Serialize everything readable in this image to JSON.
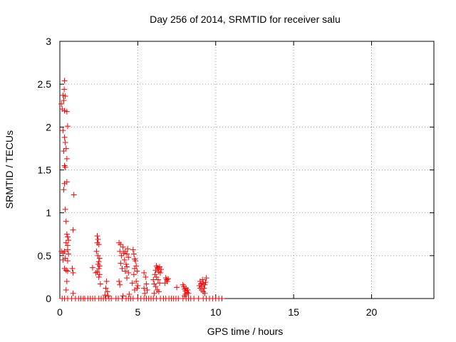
{
  "chart_data": {
    "type": "scatter",
    "title": "Day 256 of 2014, SRMTID for receiver salu",
    "xlabel": "GPS time / hours",
    "ylabel": "SRMTID / TECUs",
    "xlim": [
      0,
      24
    ],
    "ylim": [
      0,
      3
    ],
    "xticks": [
      0,
      5,
      10,
      15,
      20
    ],
    "xtick_labels": [
      "0",
      "5",
      "10",
      "15",
      "20"
    ],
    "yticks": [
      0,
      0.5,
      1,
      1.5,
      2,
      2.5,
      3
    ],
    "ytick_labels": [
      "0",
      "0.5",
      "1",
      "1.5",
      "2",
      "2.5",
      "3"
    ],
    "grid": true,
    "marker": "+",
    "series": [
      {
        "name": "SRMTID",
        "color": "#ff0000",
        "points": [
          [
            0.1,
            2.27
          ],
          [
            0.15,
            2.21
          ],
          [
            0.2,
            2.37
          ],
          [
            0.25,
            2.31
          ],
          [
            0.3,
            2.54
          ],
          [
            0.28,
            2.44
          ],
          [
            0.35,
            2.36
          ],
          [
            0.3,
            2.19
          ],
          [
            0.45,
            2.18
          ],
          [
            0.5,
            2.01
          ],
          [
            0.2,
            1.96
          ],
          [
            0.3,
            1.88
          ],
          [
            0.35,
            1.82
          ],
          [
            0.25,
            1.72
          ],
          [
            0.4,
            1.75
          ],
          [
            0.45,
            1.63
          ],
          [
            0.3,
            1.55
          ],
          [
            0.35,
            1.53
          ],
          [
            0.3,
            1.34
          ],
          [
            0.25,
            1.27
          ],
          [
            0.45,
            1.36
          ],
          [
            0.9,
            1.21
          ],
          [
            0.35,
            1.04
          ],
          [
            0.4,
            0.9
          ],
          [
            0.85,
            0.8
          ],
          [
            0.45,
            0.75
          ],
          [
            0.5,
            0.72
          ],
          [
            0.55,
            0.68
          ],
          [
            0.4,
            0.65
          ],
          [
            0.5,
            0.62
          ],
          [
            0.1,
            0.55
          ],
          [
            0.2,
            0.53
          ],
          [
            0.3,
            0.55
          ],
          [
            0.5,
            0.57
          ],
          [
            0.55,
            0.52
          ],
          [
            0.2,
            0.45
          ],
          [
            0.35,
            0.47
          ],
          [
            0.5,
            0.44
          ],
          [
            0.3,
            0.35
          ],
          [
            0.4,
            0.33
          ],
          [
            0.5,
            0.32
          ],
          [
            0.8,
            0.35
          ],
          [
            0.85,
            0.3
          ],
          [
            0.45,
            0.2
          ],
          [
            0.4,
            0.1
          ],
          [
            0.85,
            0.06
          ],
          [
            0.15,
            0
          ],
          [
            0.3,
            0
          ],
          [
            0.5,
            0
          ],
          [
            0.75,
            0
          ],
          [
            1.0,
            0
          ],
          [
            1.2,
            0
          ],
          [
            1.35,
            0
          ],
          [
            1.5,
            0
          ],
          [
            1.6,
            0
          ],
          [
            1.8,
            0
          ],
          [
            1.95,
            0
          ],
          [
            2.1,
            0
          ],
          [
            2.25,
            0
          ],
          [
            2.5,
            0
          ],
          [
            2.65,
            0
          ],
          [
            2.8,
            0
          ],
          [
            2.95,
            0
          ],
          [
            3.15,
            0
          ],
          [
            3.3,
            0
          ],
          [
            3.6,
            0
          ],
          [
            3.75,
            0
          ],
          [
            4.0,
            0
          ],
          [
            4.25,
            0
          ],
          [
            4.4,
            0
          ],
          [
            4.55,
            0
          ],
          [
            4.7,
            0
          ],
          [
            5.0,
            0
          ],
          [
            5.2,
            0
          ],
          [
            5.4,
            0
          ],
          [
            5.55,
            0
          ],
          [
            5.7,
            0
          ],
          [
            5.85,
            0
          ],
          [
            6.0,
            0
          ],
          [
            6.2,
            0
          ],
          [
            6.45,
            0
          ],
          [
            6.65,
            0
          ],
          [
            6.8,
            0
          ],
          [
            7.0,
            0
          ],
          [
            7.15,
            0
          ],
          [
            7.3,
            0
          ],
          [
            7.45,
            0
          ],
          [
            7.6,
            0
          ],
          [
            7.9,
            0
          ],
          [
            8.1,
            0
          ],
          [
            8.25,
            0
          ],
          [
            8.4,
            0
          ],
          [
            8.6,
            0
          ],
          [
            8.9,
            0
          ],
          [
            9.2,
            0
          ],
          [
            9.4,
            0
          ],
          [
            9.6,
            0
          ],
          [
            9.8,
            0
          ],
          [
            10.0,
            0
          ],
          [
            10.2,
            0
          ],
          [
            10.4,
            0
          ],
          [
            2.4,
            0.73
          ],
          [
            2.45,
            0.69
          ],
          [
            2.4,
            0.65
          ],
          [
            2.5,
            0.63
          ],
          [
            2.35,
            0.55
          ],
          [
            2.45,
            0.5
          ],
          [
            2.55,
            0.47
          ],
          [
            2.5,
            0.43
          ],
          [
            2.45,
            0.4
          ],
          [
            2.55,
            0.38
          ],
          [
            2.5,
            0.35
          ],
          [
            2.4,
            0.31
          ],
          [
            2.55,
            0.28
          ],
          [
            2.5,
            0.25
          ],
          [
            2.1,
            0.36
          ],
          [
            2.3,
            0.3
          ],
          [
            2.6,
            0.17
          ],
          [
            2.95,
            0.12
          ],
          [
            3.0,
            0.2
          ],
          [
            3.05,
            0.08
          ],
          [
            2.9,
            0.04
          ],
          [
            3.1,
            0.03
          ],
          [
            3.8,
            0.65
          ],
          [
            3.9,
            0.63
          ],
          [
            4.05,
            0.6
          ],
          [
            3.85,
            0.55
          ],
          [
            3.95,
            0.5
          ],
          [
            4.1,
            0.53
          ],
          [
            4.2,
            0.55
          ],
          [
            4.3,
            0.52
          ],
          [
            4.35,
            0.58
          ],
          [
            4.4,
            0.48
          ],
          [
            4.15,
            0.45
          ],
          [
            4.25,
            0.4
          ],
          [
            4.3,
            0.37
          ],
          [
            3.9,
            0.41
          ],
          [
            4.0,
            0.35
          ],
          [
            4.2,
            0.32
          ],
          [
            4.4,
            0.3
          ],
          [
            3.8,
            0.2
          ],
          [
            3.85,
            0.16
          ],
          [
            4.3,
            0.24
          ],
          [
            4.05,
            0.03
          ],
          [
            4.45,
            0.05
          ],
          [
            4.7,
            0.57
          ],
          [
            4.75,
            0.52
          ],
          [
            4.8,
            0.46
          ],
          [
            4.85,
            0.44
          ],
          [
            4.9,
            0.38
          ],
          [
            4.8,
            0.35
          ],
          [
            4.95,
            0.32
          ],
          [
            4.75,
            0.28
          ],
          [
            4.65,
            0.18
          ],
          [
            4.9,
            0.2
          ],
          [
            5.0,
            0.15
          ],
          [
            4.8,
            0.1
          ],
          [
            4.95,
            0.12
          ],
          [
            5.4,
            0.3
          ],
          [
            5.5,
            0.25
          ],
          [
            5.55,
            0.17
          ],
          [
            5.4,
            0.12
          ],
          [
            5.6,
            0.1
          ],
          [
            5.45,
            0.06
          ],
          [
            6.0,
            0.22
          ],
          [
            6.05,
            0.17
          ],
          [
            6.1,
            0.28
          ],
          [
            6.15,
            0.33
          ],
          [
            6.2,
            0.38
          ],
          [
            6.25,
            0.36
          ],
          [
            6.3,
            0.35
          ],
          [
            6.35,
            0.31
          ],
          [
            6.4,
            0.37
          ],
          [
            6.45,
            0.3
          ],
          [
            6.5,
            0.34
          ],
          [
            6.2,
            0.25
          ],
          [
            6.3,
            0.22
          ],
          [
            6.15,
            0.14
          ],
          [
            6.25,
            0.1
          ],
          [
            6.35,
            0.08
          ],
          [
            6.05,
            0.06
          ],
          [
            6.4,
            0.18
          ],
          [
            6.8,
            0.24
          ],
          [
            6.85,
            0.22
          ],
          [
            6.9,
            0.2
          ],
          [
            6.75,
            0.18
          ],
          [
            6.95,
            0.23
          ],
          [
            7.5,
            0.13
          ],
          [
            7.9,
            0.16
          ],
          [
            7.95,
            0.14
          ],
          [
            8.0,
            0.11
          ],
          [
            8.05,
            0.09
          ],
          [
            8.1,
            0.12
          ],
          [
            8.15,
            0.07
          ],
          [
            8.2,
            0.1
          ],
          [
            8.05,
            0.05
          ],
          [
            8.25,
            0.06
          ],
          [
            8.0,
            0.03
          ],
          [
            8.95,
            0.15
          ],
          [
            9.0,
            0.2
          ],
          [
            9.05,
            0.17
          ],
          [
            9.1,
            0.14
          ],
          [
            9.15,
            0.22
          ],
          [
            9.2,
            0.18
          ],
          [
            9.25,
            0.12
          ],
          [
            9.3,
            0.16
          ],
          [
            9.35,
            0.19
          ],
          [
            9.4,
            0.24
          ],
          [
            9.1,
            0.1
          ],
          [
            9.2,
            0.08
          ],
          [
            9.3,
            0.06
          ],
          [
            9.0,
            0.12
          ]
        ]
      }
    ]
  }
}
